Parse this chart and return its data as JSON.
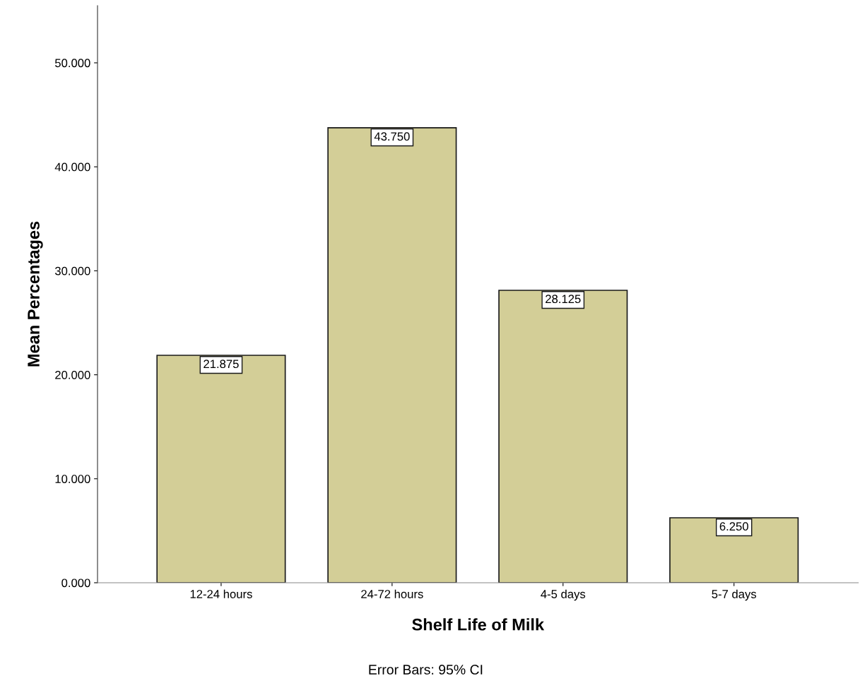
{
  "chart_data": {
    "type": "bar",
    "xlabel": "Shelf Life of Milk",
    "ylabel": "Mean Percentages",
    "categories": [
      "12-24 hours",
      "24-72 hours",
      "4-5 days",
      "5-7 days"
    ],
    "values": [
      21.875,
      43.75,
      28.125,
      6.25
    ],
    "value_labels": [
      "21.875",
      "43.750",
      "28.125",
      "6.250"
    ],
    "color": "#d3ce97",
    "ylim": [
      0,
      55.5
    ],
    "yticks": [
      {
        "value": 0,
        "label": "0.000"
      },
      {
        "value": 10,
        "label": "10.000"
      },
      {
        "value": 20,
        "label": "20.000"
      },
      {
        "value": 30,
        "label": "30.000"
      },
      {
        "value": 40,
        "label": "40.000"
      },
      {
        "value": 50,
        "label": "50.000"
      }
    ],
    "grid": false,
    "legend": false,
    "annotations": [
      "Error Bars: 95% CI"
    ]
  }
}
